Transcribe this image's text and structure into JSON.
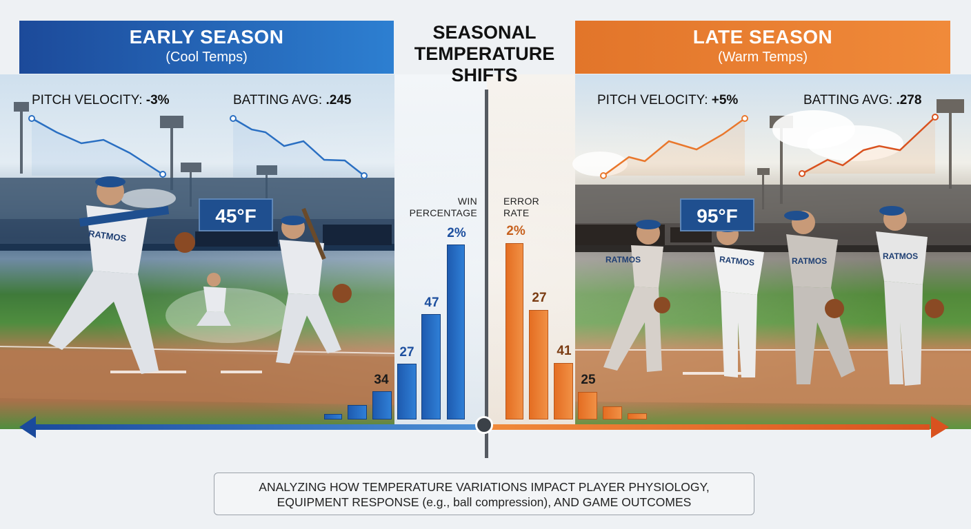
{
  "header": {
    "left": {
      "title": "EARLY SEASON",
      "subtitle": "(Cool Temps)"
    },
    "center": {
      "line1": "SEASONAL",
      "line2": "TEMPERATURE",
      "line3": "SHIFTS"
    },
    "right": {
      "title": "LATE SEASON",
      "subtitle": "(Warm Temps)"
    }
  },
  "early": {
    "pitch_label": "PITCH VELOCITY:",
    "pitch_value": "-3%",
    "bat_label": "BATTING AVG:",
    "bat_value": ".245",
    "temp": "45°F",
    "color": "#1f5fb5"
  },
  "late": {
    "pitch_label": "PITCH VELOCITY:",
    "pitch_value": "+5%",
    "bat_label": "BATTING AVG:",
    "bat_value": ".278",
    "temp": "95°F",
    "color": "#e46e22"
  },
  "win": {
    "label_line1": "WIN",
    "label_line2": "PERCENTAGE",
    "values": [
      "34",
      "27",
      "47",
      "2%"
    ]
  },
  "error": {
    "label_line1": "ERROR",
    "label_line2": "RATE",
    "values": [
      "2%",
      "27",
      "41",
      "25"
    ]
  },
  "jersey_text": "RATMOS",
  "footer": {
    "line1": "ANALYZING HOW TEMPERATURE VARIATIONS IMPACT PLAYER PHYSIOLOGY,",
    "line2": "EQUIPMENT RESPONSE (e.g., ball compression), AND GAME OUTCOMES"
  }
}
